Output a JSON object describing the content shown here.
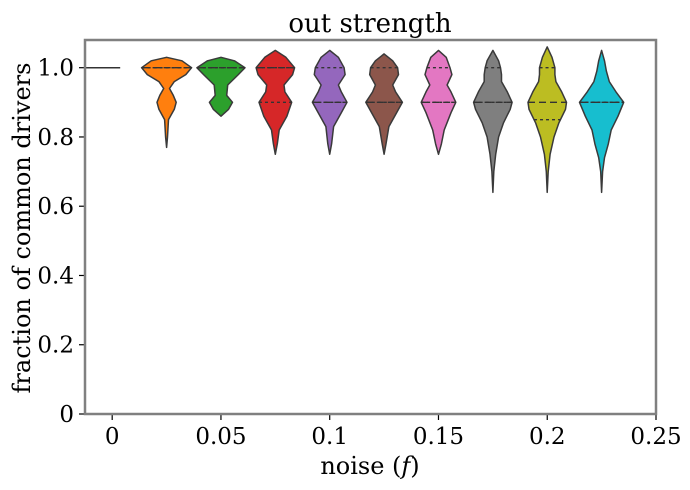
{
  "chart_data": {
    "type": "violin",
    "title": "out strength",
    "xlabel_prefix": "noise (",
    "xlabel_var": "f",
    "xlabel_suffix": ")",
    "ylabel": "fraction of common drivers",
    "xlim": [
      -0.0125,
      0.25
    ],
    "ylim": [
      0,
      1.08
    ],
    "x_ticks": [
      0,
      0.05,
      0.1,
      0.15,
      0.2,
      0.25
    ],
    "x_tick_labels": [
      "0",
      "0.05",
      "0.1",
      "0.15",
      "0.2",
      "0.25"
    ],
    "y_ticks": [
      0,
      0.2,
      0.4,
      0.6,
      0.8,
      1.0
    ],
    "y_tick_labels": [
      "0",
      "0.2",
      "0.4",
      "0.6",
      "0.8",
      "1.0"
    ],
    "grid": false,
    "series": [
      {
        "x": 0,
        "color": "#1f77b4",
        "ymin": 1.0,
        "ymax": 1.0,
        "quartiles": [
          1.0,
          1.0,
          1.0
        ],
        "density": [
          [
            1.0,
            1.0
          ]
        ]
      },
      {
        "x": 0.025,
        "color": "#ff7f0e",
        "ymin": 0.77,
        "ymax": 1.03,
        "quartiles": [
          1.0,
          1.0,
          1.0
        ],
        "density": [
          [
            0.77,
            0.0
          ],
          [
            0.8,
            0.05
          ],
          [
            0.85,
            0.1
          ],
          [
            0.88,
            0.4
          ],
          [
            0.9,
            0.5
          ],
          [
            0.92,
            0.35
          ],
          [
            0.94,
            0.15
          ],
          [
            0.96,
            0.4
          ],
          [
            0.98,
            1.0
          ],
          [
            1.0,
            1.3
          ],
          [
            1.02,
            0.8
          ],
          [
            1.03,
            0.0
          ]
        ]
      },
      {
        "x": 0.05,
        "color": "#2ca02c",
        "ymin": 0.86,
        "ymax": 1.03,
        "quartiles": [
          1.0,
          1.0,
          1.0
        ],
        "density": [
          [
            0.86,
            0.0
          ],
          [
            0.88,
            0.4
          ],
          [
            0.9,
            0.6
          ],
          [
            0.92,
            0.3
          ],
          [
            0.95,
            0.35
          ],
          [
            0.98,
            0.9
          ],
          [
            1.0,
            1.25
          ],
          [
            1.02,
            0.7
          ],
          [
            1.03,
            0.0
          ]
        ]
      },
      {
        "x": 0.075,
        "color": "#d62728",
        "ymin": 0.75,
        "ymax": 1.05,
        "quartiles": [
          0.9,
          1.0,
          1.0
        ],
        "density": [
          [
            0.75,
            0.0
          ],
          [
            0.78,
            0.1
          ],
          [
            0.82,
            0.2
          ],
          [
            0.86,
            0.6
          ],
          [
            0.9,
            0.85
          ],
          [
            0.93,
            0.5
          ],
          [
            0.95,
            0.45
          ],
          [
            0.98,
            0.9
          ],
          [
            1.0,
            1.0
          ],
          [
            1.03,
            0.55
          ],
          [
            1.05,
            0.0
          ]
        ]
      },
      {
        "x": 0.1,
        "color": "#9467bd",
        "ymin": 0.75,
        "ymax": 1.05,
        "quartiles": [
          0.9,
          0.9,
          1.0
        ],
        "density": [
          [
            0.75,
            0.0
          ],
          [
            0.78,
            0.1
          ],
          [
            0.83,
            0.2
          ],
          [
            0.87,
            0.6
          ],
          [
            0.9,
            0.9
          ],
          [
            0.93,
            0.6
          ],
          [
            0.95,
            0.45
          ],
          [
            0.98,
            0.8
          ],
          [
            1.0,
            0.75
          ],
          [
            1.03,
            0.45
          ],
          [
            1.05,
            0.0
          ]
        ]
      },
      {
        "x": 0.125,
        "color": "#8c564b",
        "ymin": 0.75,
        "ymax": 1.04,
        "quartiles": [
          0.9,
          0.9,
          1.0
        ],
        "density": [
          [
            0.75,
            0.0
          ],
          [
            0.78,
            0.1
          ],
          [
            0.83,
            0.25
          ],
          [
            0.87,
            0.65
          ],
          [
            0.9,
            0.95
          ],
          [
            0.93,
            0.6
          ],
          [
            0.95,
            0.45
          ],
          [
            0.98,
            0.75
          ],
          [
            1.0,
            0.7
          ],
          [
            1.02,
            0.45
          ],
          [
            1.04,
            0.0
          ]
        ]
      },
      {
        "x": 0.15,
        "color": "#e377c2",
        "ymin": 0.75,
        "ymax": 1.05,
        "quartiles": [
          0.9,
          0.9,
          1.0
        ],
        "density": [
          [
            0.75,
            0.0
          ],
          [
            0.78,
            0.15
          ],
          [
            0.82,
            0.3
          ],
          [
            0.87,
            0.65
          ],
          [
            0.9,
            0.9
          ],
          [
            0.93,
            0.65
          ],
          [
            0.95,
            0.45
          ],
          [
            0.98,
            0.7
          ],
          [
            1.0,
            0.6
          ],
          [
            1.03,
            0.4
          ],
          [
            1.05,
            0.0
          ]
        ]
      },
      {
        "x": 0.175,
        "color": "#7f7f7f",
        "ymin": 0.64,
        "ymax": 1.05,
        "quartiles": [
          0.9,
          0.9,
          1.0
        ],
        "density": [
          [
            0.64,
            0.0
          ],
          [
            0.7,
            0.05
          ],
          [
            0.75,
            0.15
          ],
          [
            0.8,
            0.3
          ],
          [
            0.84,
            0.55
          ],
          [
            0.88,
            0.9
          ],
          [
            0.9,
            1.0
          ],
          [
            0.93,
            0.75
          ],
          [
            0.96,
            0.45
          ],
          [
            0.98,
            0.45
          ],
          [
            1.0,
            0.4
          ],
          [
            1.02,
            0.3
          ],
          [
            1.05,
            0.0
          ]
        ]
      },
      {
        "x": 0.2,
        "color": "#bcbd22",
        "ymin": 0.64,
        "ymax": 1.06,
        "quartiles": [
          0.85,
          0.9,
          1.0
        ],
        "density": [
          [
            0.64,
            0.0
          ],
          [
            0.7,
            0.05
          ],
          [
            0.75,
            0.15
          ],
          [
            0.8,
            0.35
          ],
          [
            0.84,
            0.6
          ],
          [
            0.88,
            0.95
          ],
          [
            0.9,
            1.0
          ],
          [
            0.93,
            0.75
          ],
          [
            0.96,
            0.45
          ],
          [
            0.98,
            0.4
          ],
          [
            1.0,
            0.4
          ],
          [
            1.03,
            0.25
          ],
          [
            1.06,
            0.0
          ]
        ]
      },
      {
        "x": 0.225,
        "color": "#17becf",
        "ymin": 0.64,
        "ymax": 1.05,
        "quartiles": [
          0.9,
          0.9,
          0.9
        ],
        "density": [
          [
            0.64,
            0.0
          ],
          [
            0.7,
            0.05
          ],
          [
            0.74,
            0.15
          ],
          [
            0.78,
            0.35
          ],
          [
            0.82,
            0.5
          ],
          [
            0.86,
            0.85
          ],
          [
            0.9,
            1.15
          ],
          [
            0.93,
            0.75
          ],
          [
            0.96,
            0.4
          ],
          [
            0.99,
            0.25
          ],
          [
            1.02,
            0.15
          ],
          [
            1.05,
            0.0
          ]
        ]
      }
    ]
  }
}
